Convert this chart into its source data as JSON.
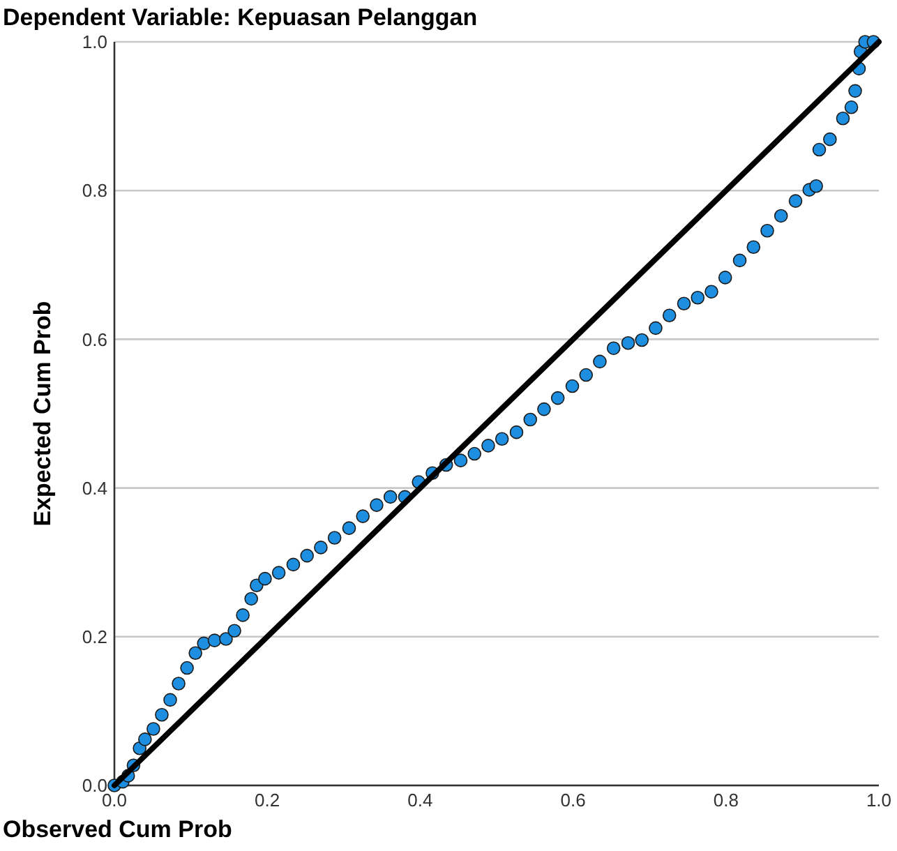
{
  "chart_data": {
    "type": "scatter",
    "title": "Dependent Variable: Kepuasan Pelanggan",
    "xlabel": "Observed Cum Prob",
    "ylabel": "Expected Cum Prob",
    "xlim": [
      0,
      1
    ],
    "ylim": [
      0,
      1
    ],
    "xticks": [
      {
        "value": 0,
        "label": "0.0"
      },
      {
        "value": 0.2,
        "label": "0.2"
      },
      {
        "value": 0.4,
        "label": "0.4"
      },
      {
        "value": 0.6,
        "label": "0.6"
      },
      {
        "value": 0.8,
        "label": "0.8"
      },
      {
        "value": 1,
        "label": "1.0"
      }
    ],
    "yticks": [
      {
        "value": 0,
        "label": "0.0"
      },
      {
        "value": 0.2,
        "label": "0.2"
      },
      {
        "value": 0.4,
        "label": "0.4"
      },
      {
        "value": 0.6,
        "label": "0.6"
      },
      {
        "value": 0.8,
        "label": "0.8"
      },
      {
        "value": 1,
        "label": "1.0"
      }
    ],
    "grid": "y",
    "series": [
      {
        "marker": "circle",
        "color": "#1e8fe0",
        "x": [
          0,
          0.011,
          0.018,
          0.025,
          0.033,
          0.04,
          0.051,
          0.062,
          0.073,
          0.084,
          0.095,
          0.106,
          0.117,
          0.131,
          0.146,
          0.157,
          0.168,
          0.179,
          0.186,
          0.197,
          0.215,
          0.234,
          0.252,
          0.27,
          0.288,
          0.307,
          0.325,
          0.343,
          0.361,
          0.38,
          0.398,
          0.416,
          0.434,
          0.453,
          0.471,
          0.489,
          0.507,
          0.526,
          0.544,
          0.562,
          0.58,
          0.599,
          0.617,
          0.635,
          0.653,
          0.672,
          0.69,
          0.708,
          0.726,
          0.745,
          0.763,
          0.781,
          0.799,
          0.818,
          0.836,
          0.854,
          0.872,
          0.891,
          0.909,
          0.918,
          0.922,
          0.936,
          0.953,
          0.964,
          0.969,
          0.974,
          0.976,
          0.982,
          0.993
        ],
        "values": [
          0,
          0.005,
          0.013,
          0.027,
          0.05,
          0.062,
          0.076,
          0.095,
          0.115,
          0.137,
          0.158,
          0.178,
          0.191,
          0.195,
          0.197,
          0.208,
          0.229,
          0.251,
          0.269,
          0.278,
          0.286,
          0.297,
          0.309,
          0.32,
          0.333,
          0.346,
          0.362,
          0.377,
          0.388,
          0.388,
          0.408,
          0.42,
          0.431,
          0.437,
          0.446,
          0.457,
          0.466,
          0.475,
          0.492,
          0.506,
          0.521,
          0.537,
          0.552,
          0.57,
          0.588,
          0.595,
          0.599,
          0.615,
          0.632,
          0.648,
          0.656,
          0.664,
          0.683,
          0.706,
          0.724,
          0.746,
          0.766,
          0.786,
          0.801,
          0.806,
          0.855,
          0.869,
          0.897,
          0.912,
          0.934,
          0.964,
          0.987,
          1.0,
          1.0
        ]
      },
      {
        "type": "line",
        "color": "#000000",
        "x": [
          0,
          1
        ],
        "values": [
          0,
          1
        ]
      }
    ]
  }
}
